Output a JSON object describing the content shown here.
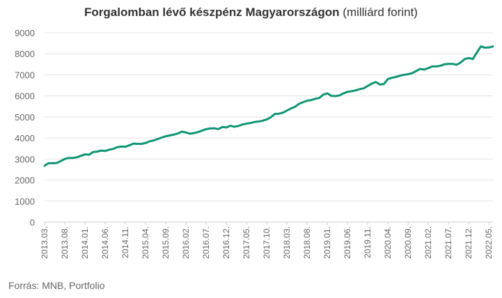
{
  "header": {
    "title_bold": "Forgalomban lévő készpénz Magyarországon",
    "title_unit": "(milliárd forint)"
  },
  "footer": {
    "source": "Forrás: MNB, Portfolio"
  },
  "colors": {
    "line": "#0f9475",
    "grid": "#e3e3e3",
    "text": "#666666"
  },
  "chart_data": {
    "type": "line",
    "title": "Forgalomban lévő készpénz Magyarországon (milliárd forint)",
    "xlabel": "",
    "ylabel": "",
    "ylim": [
      0,
      9000
    ],
    "yticks": [
      0,
      1000,
      2000,
      3000,
      4000,
      5000,
      6000,
      7000,
      8000,
      9000
    ],
    "grid": true,
    "x_tick_labels": [
      "2013.03.",
      "2013.08.",
      "2014.01.",
      "2014.06.",
      "2014.11.",
      "2015.04.",
      "2015.09.",
      "2016.02.",
      "2016.07.",
      "2016.12.",
      "2017.05.",
      "2017.10.",
      "2018.03.",
      "2018.08.",
      "2019.01.",
      "2019.06.",
      "2019.11.",
      "2020.04.",
      "2020.09.",
      "2021.02.",
      "2021.07.",
      "2021.12.",
      "2022.05."
    ],
    "series": [
      {
        "x": [
          "2013.03.",
          "2013.04.",
          "2013.05.",
          "2013.06.",
          "2013.07.",
          "2013.08.",
          "2013.09.",
          "2013.10.",
          "2013.11.",
          "2013.12.",
          "2014.01.",
          "2014.02.",
          "2014.03.",
          "2014.04.",
          "2014.05.",
          "2014.06.",
          "2014.07.",
          "2014.08.",
          "2014.09.",
          "2014.10.",
          "2014.11.",
          "2014.12.",
          "2015.01.",
          "2015.02.",
          "2015.03.",
          "2015.04.",
          "2015.05.",
          "2015.06.",
          "2015.07.",
          "2015.08.",
          "2015.09.",
          "2015.10.",
          "2015.11.",
          "2015.12.",
          "2016.01.",
          "2016.02.",
          "2016.03.",
          "2016.04.",
          "2016.05.",
          "2016.06.",
          "2016.07.",
          "2016.08.",
          "2016.09.",
          "2016.10.",
          "2016.11.",
          "2016.12.",
          "2017.01.",
          "2017.02.",
          "2017.03.",
          "2017.04.",
          "2017.05.",
          "2017.06.",
          "2017.07.",
          "2017.08.",
          "2017.09.",
          "2017.10.",
          "2017.11.",
          "2017.12.",
          "2018.01.",
          "2018.02.",
          "2018.03.",
          "2018.04.",
          "2018.05.",
          "2018.06.",
          "2018.07.",
          "2018.08.",
          "2018.09.",
          "2018.10.",
          "2018.11.",
          "2018.12.",
          "2019.01.",
          "2019.02.",
          "2019.03.",
          "2019.04.",
          "2019.05.",
          "2019.06.",
          "2019.07.",
          "2019.08.",
          "2019.09.",
          "2019.10.",
          "2019.11.",
          "2019.12.",
          "2020.01.",
          "2020.02.",
          "2020.03.",
          "2020.04.",
          "2020.05.",
          "2020.06.",
          "2020.07.",
          "2020.08.",
          "2020.09.",
          "2020.10.",
          "2020.11.",
          "2020.12.",
          "2021.01.",
          "2021.02.",
          "2021.03.",
          "2021.04.",
          "2021.05.",
          "2021.06.",
          "2021.07.",
          "2021.08.",
          "2021.09.",
          "2021.10.",
          "2021.11.",
          "2021.12.",
          "2022.01.",
          "2022.02.",
          "2022.03.",
          "2022.04.",
          "2022.05.",
          "2022.06."
        ],
        "values": [
          2680,
          2800,
          2800,
          2810,
          2900,
          3000,
          3050,
          3050,
          3080,
          3150,
          3220,
          3200,
          3330,
          3350,
          3400,
          3380,
          3440,
          3480,
          3560,
          3590,
          3580,
          3650,
          3730,
          3720,
          3720,
          3760,
          3840,
          3880,
          3950,
          4020,
          4080,
          4120,
          4160,
          4210,
          4300,
          4260,
          4200,
          4230,
          4280,
          4350,
          4420,
          4450,
          4460,
          4420,
          4520,
          4500,
          4580,
          4530,
          4570,
          4640,
          4680,
          4710,
          4760,
          4780,
          4820,
          4880,
          4980,
          5140,
          5150,
          5200,
          5300,
          5400,
          5480,
          5620,
          5700,
          5770,
          5800,
          5860,
          5900,
          6060,
          6120,
          6000,
          5990,
          6020,
          6120,
          6190,
          6220,
          6260,
          6320,
          6360,
          6470,
          6580,
          6660,
          6540,
          6560,
          6800,
          6860,
          6900,
          6960,
          7000,
          7030,
          7080,
          7180,
          7280,
          7250,
          7320,
          7400,
          7400,
          7430,
          7500,
          7520,
          7520,
          7480,
          7580,
          7750,
          7800,
          7750,
          8050,
          8350,
          8290,
          8300,
          8350
        ]
      }
    ]
  }
}
